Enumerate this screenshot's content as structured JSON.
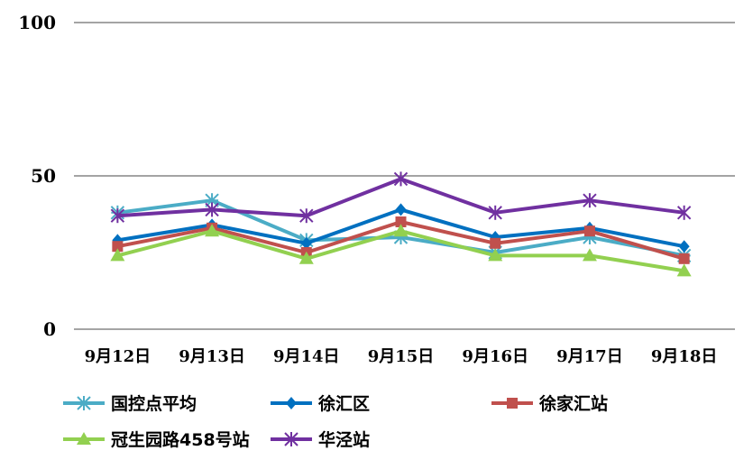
{
  "chart_data": {
    "type": "line",
    "title": "",
    "xlabel": "",
    "ylabel": "",
    "ylim": [
      0,
      100
    ],
    "yticks": [
      "0",
      "50",
      "100"
    ],
    "ytick_values": [
      0,
      50,
      100
    ],
    "grid": true,
    "legend_position": "bottom",
    "categories": [
      "9月12日",
      "9月13日",
      "9月14日",
      "9月15日",
      "9月16日",
      "9月17日",
      "9月18日"
    ],
    "series": [
      {
        "name": "国控点平均",
        "color": "#4bacc6",
        "marker": "asterisk",
        "values": [
          38,
          42,
          29,
          30,
          25,
          30,
          24
        ]
      },
      {
        "name": "徐汇区",
        "color": "#0070c0",
        "marker": "diamond",
        "values": [
          29,
          34,
          28,
          39,
          30,
          33,
          27
        ]
      },
      {
        "name": "徐家汇站",
        "color": "#c0504d",
        "marker": "square",
        "values": [
          27,
          33,
          25,
          35,
          28,
          32,
          23
        ]
      },
      {
        "name": "冠生园路458号站",
        "color": "#92d050",
        "marker": "triangle",
        "values": [
          24,
          32,
          23,
          32,
          24,
          24,
          19
        ]
      },
      {
        "name": "华泾站",
        "color": "#7030a0",
        "marker": "star",
        "values": [
          37,
          39,
          37,
          49,
          38,
          42,
          38
        ]
      }
    ]
  }
}
